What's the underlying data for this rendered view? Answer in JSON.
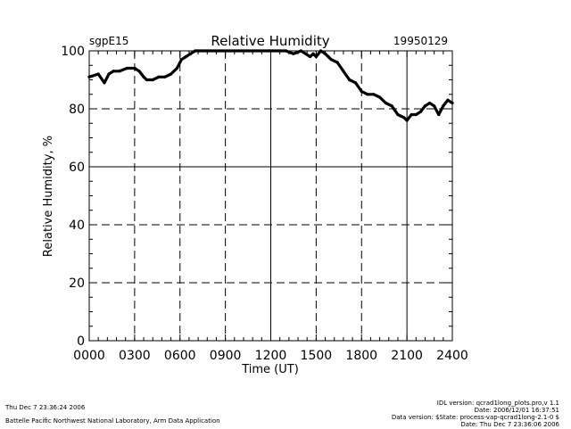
{
  "chart_data": {
    "type": "line",
    "title": "Relative Humidity",
    "site": "sgpE15",
    "date": "19950129",
    "xlabel": "Time (UT)",
    "ylabel": "Relative Humidity, %",
    "xlim": [
      0,
      2400
    ],
    "ylim": [
      0,
      100
    ],
    "xticks": [
      "0000",
      "0300",
      "0600",
      "0900",
      "1200",
      "1500",
      "1800",
      "2100",
      "2400"
    ],
    "yticks": [
      "0",
      "20",
      "40",
      "60",
      "80",
      "100"
    ],
    "grid": true,
    "series": [
      {
        "name": "Relative Humidity",
        "color": "#000000",
        "x": [
          0,
          60,
          100,
          130,
          160,
          200,
          250,
          300,
          330,
          360,
          380,
          420,
          460,
          500,
          540,
          580,
          610,
          640,
          670,
          700,
          720,
          1190,
          1200,
          1250,
          1300,
          1350,
          1400,
          1430,
          1460,
          1480,
          1500,
          1530,
          1560,
          1600,
          1640,
          1680,
          1720,
          1760,
          1800,
          1840,
          1880,
          1920,
          1960,
          2000,
          2040,
          2080,
          2100,
          2130,
          2160,
          2190,
          2220,
          2250,
          2280,
          2310,
          2340,
          2370,
          2400
        ],
        "y": [
          91,
          92,
          89,
          92,
          93,
          93,
          94,
          94,
          93,
          91,
          90,
          90,
          91,
          91,
          92,
          94,
          97,
          98,
          99,
          100,
          100,
          100,
          100,
          100,
          100,
          99,
          100,
          99,
          98,
          99,
          98,
          100,
          99,
          97,
          96,
          93,
          90,
          89,
          86,
          85,
          85,
          84,
          82,
          81,
          78,
          77,
          76,
          78,
          78,
          79,
          81,
          82,
          81,
          78,
          81,
          83,
          82
        ]
      }
    ]
  },
  "footer": {
    "timestamp": "Thu Dec  7 23:36:24 2006",
    "organization": "Battelle Pacific Northwest National Laboratory, Arm Data Application",
    "idl_version": "IDL version: qcrad1long_plots.pro,v 1.1",
    "file_date": "Date: 2006/12/01 16:37:51",
    "data_version": "Data version: $State: process-vap-qcrad1long-2.1-0 $",
    "run_date": "Date: Thu Dec  7 23:36:06 2006"
  }
}
